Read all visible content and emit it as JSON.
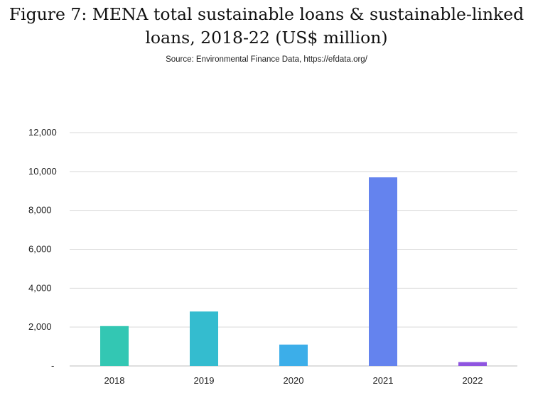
{
  "title_line1": "Figure 7: MENA total sustainable loans & sustainable-linked",
  "title_line2": "loans, 2018-22 (US$ million)",
  "source": "Source: Environmental Finance Data, https://efdata.org/",
  "chart_data": {
    "type": "bar",
    "title": "Figure 7: MENA total sustainable loans & sustainable-linked loans, 2018-22 (US$ million)",
    "categories": [
      "2018",
      "2019",
      "2020",
      "2021",
      "2022"
    ],
    "values": [
      2050,
      2800,
      1100,
      9700,
      200
    ],
    "bar_colors": [
      "#33c7b3",
      "#34bccf",
      "#3caee9",
      "#6483ee",
      "#8f55e0"
    ],
    "ylim": [
      0,
      12000
    ],
    "yticks": [
      0,
      2000,
      4000,
      6000,
      8000,
      10000,
      12000
    ],
    "ytick_labels": [
      "-",
      "2,000",
      "4,000",
      "6,000",
      "8,000",
      "10,000",
      "12,000"
    ],
    "xlabel": "",
    "ylabel": "",
    "grid": true,
    "legend": "none"
  }
}
